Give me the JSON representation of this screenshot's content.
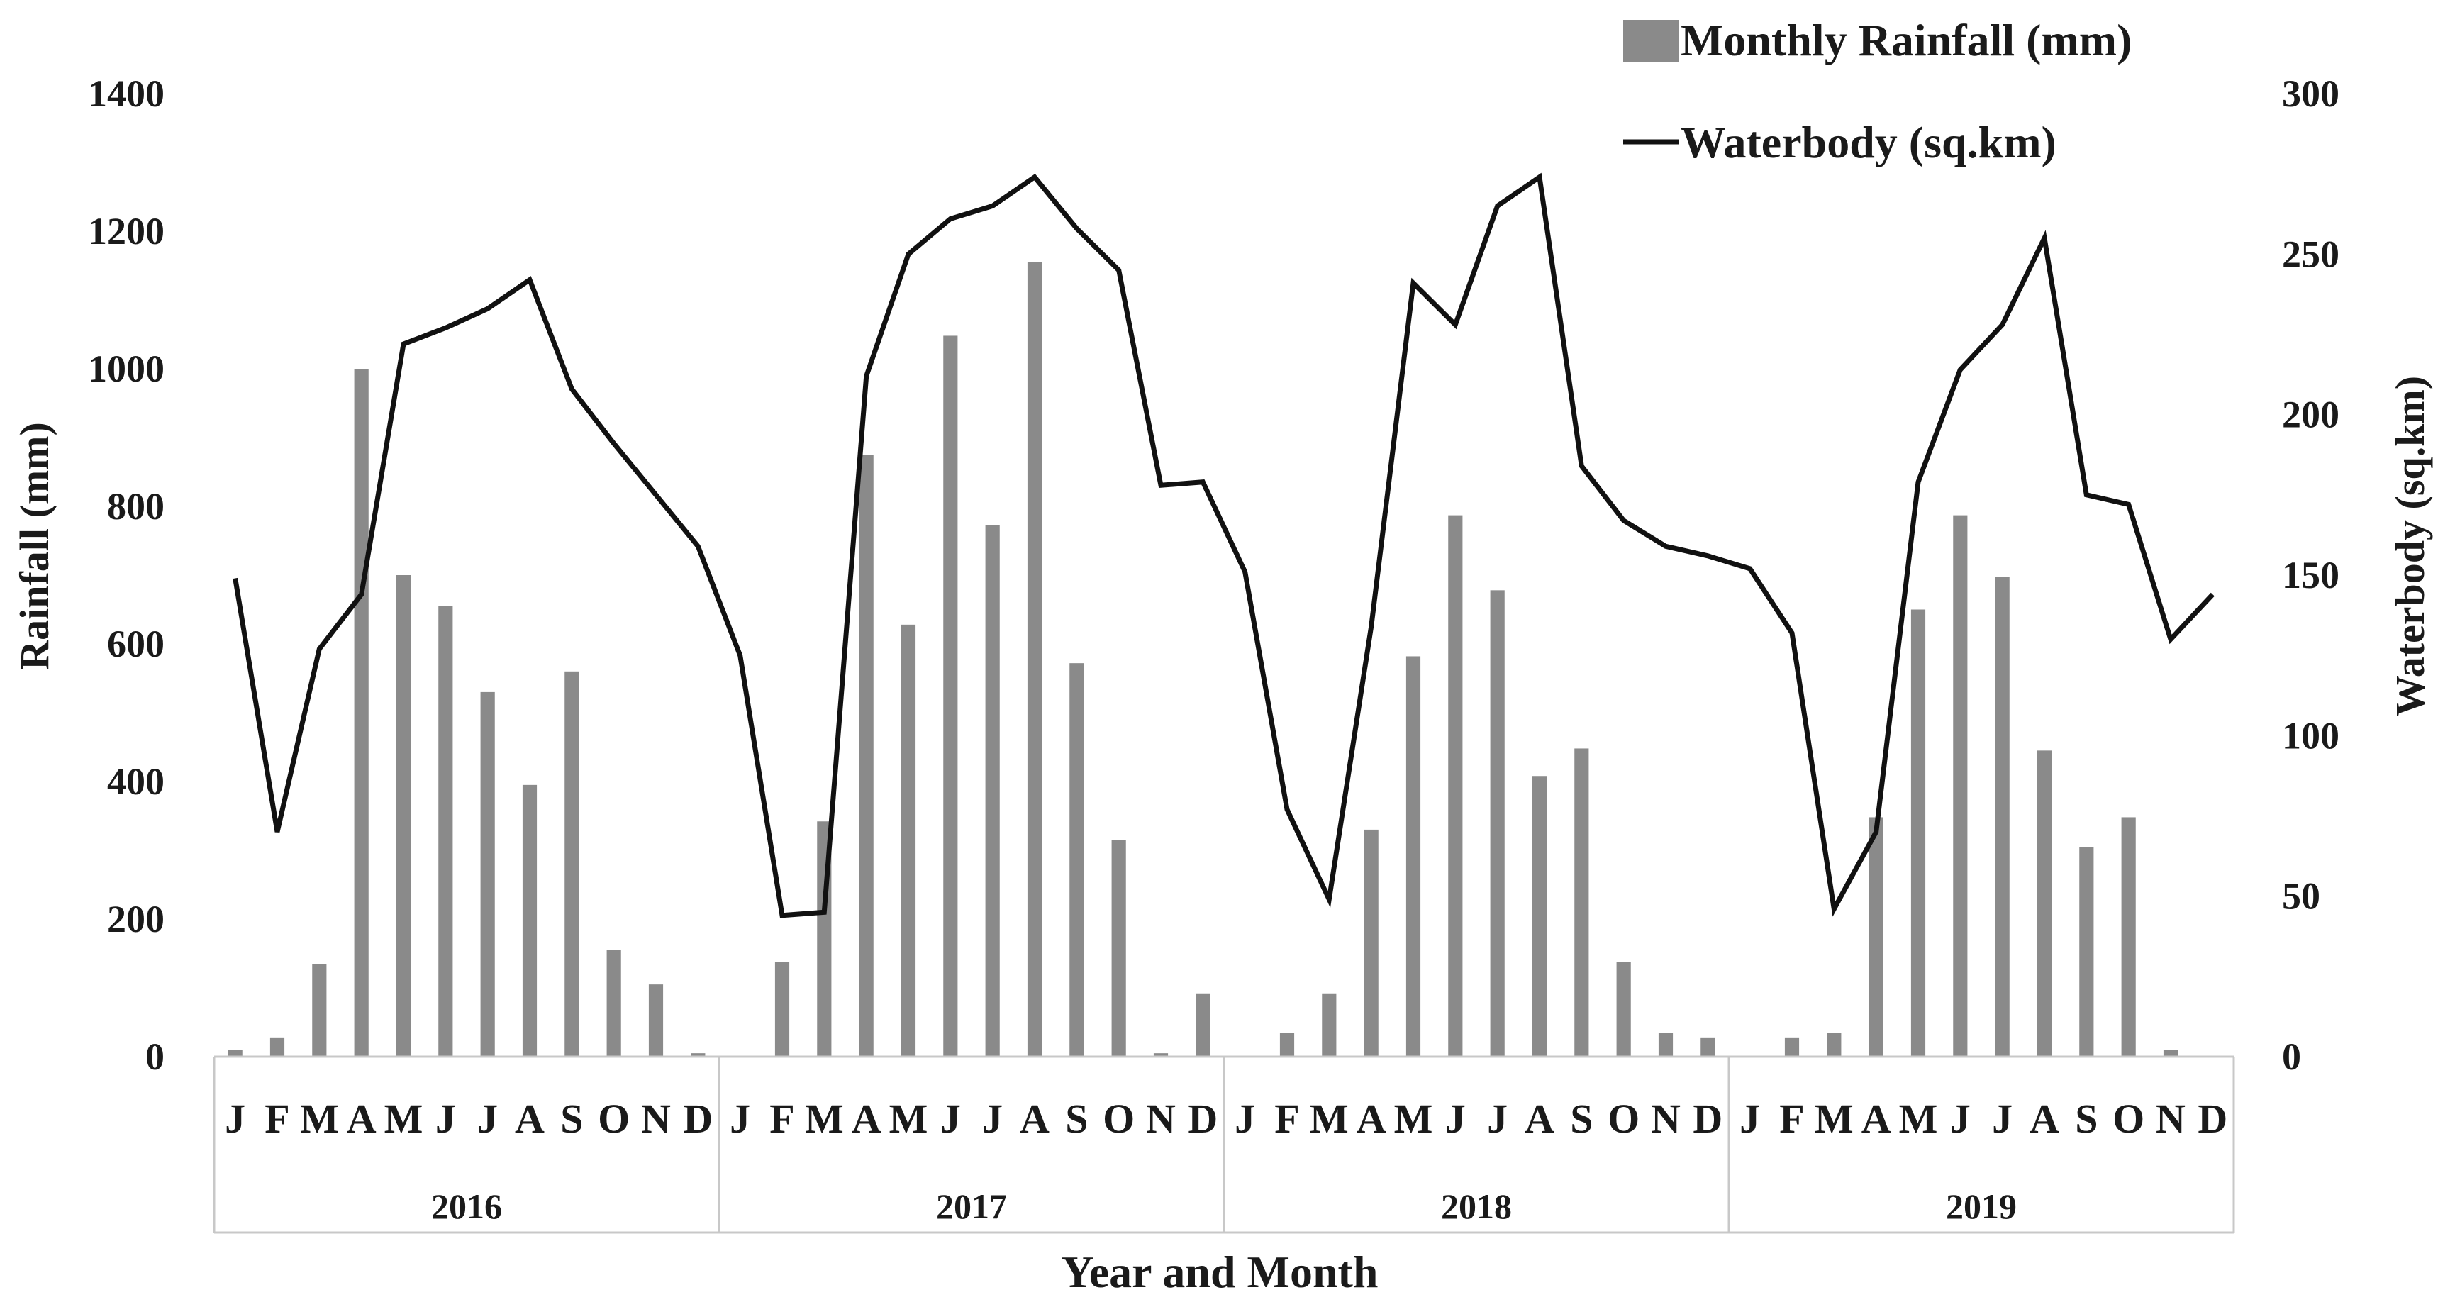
{
  "chart_data": {
    "type": "bar",
    "xlabel": "Year and Month",
    "ylabel_left": "Rainfall (mm)",
    "ylabel_right": "Waterbody (sq.km)",
    "y_left_range": [
      0,
      1400
    ],
    "y_left_ticks": [
      "0",
      "200",
      "400",
      "600",
      "800",
      "1000",
      "1200",
      "1400"
    ],
    "y_right_range": [
      0,
      300
    ],
    "y_right_ticks": [
      "0",
      "50",
      "100",
      "150",
      "200",
      "250",
      "300"
    ],
    "grid": false,
    "legend_position": "top-right",
    "month_labels": [
      "J",
      "F",
      "M",
      "A",
      "M",
      "J",
      "J",
      "A",
      "S",
      "O",
      "N",
      "D"
    ],
    "years": [
      "2016",
      "2017",
      "2018",
      "2019"
    ],
    "series": [
      {
        "name": "Monthly Rainfall (mm)",
        "kind": "bar",
        "axis": "left",
        "color": "#8a8a8a",
        "values": [
          10,
          28,
          135,
          1000,
          700,
          655,
          530,
          395,
          560,
          155,
          105,
          5,
          0,
          138,
          342,
          875,
          628,
          1048,
          773,
          1155,
          572,
          315,
          5,
          92,
          0,
          35,
          92,
          330,
          582,
          787,
          678,
          408,
          448,
          138,
          35,
          28,
          0,
          28,
          35,
          348,
          650,
          787,
          697,
          445,
          305,
          348,
          10,
          0
        ]
      },
      {
        "name": "Waterbody (sq.km)",
        "kind": "line",
        "axis": "right",
        "color": "#111111",
        "values": [
          149,
          70,
          127,
          144,
          222,
          227,
          233,
          242,
          208,
          191,
          175,
          159,
          125,
          44,
          45,
          212,
          250,
          261,
          265,
          274,
          258,
          245,
          178,
          179,
          151,
          77,
          49,
          134,
          241,
          228,
          265,
          274,
          184,
          167,
          159,
          156,
          152,
          132,
          46,
          70,
          179,
          214,
          228,
          255,
          175,
          172,
          130,
          144
        ]
      }
    ]
  }
}
